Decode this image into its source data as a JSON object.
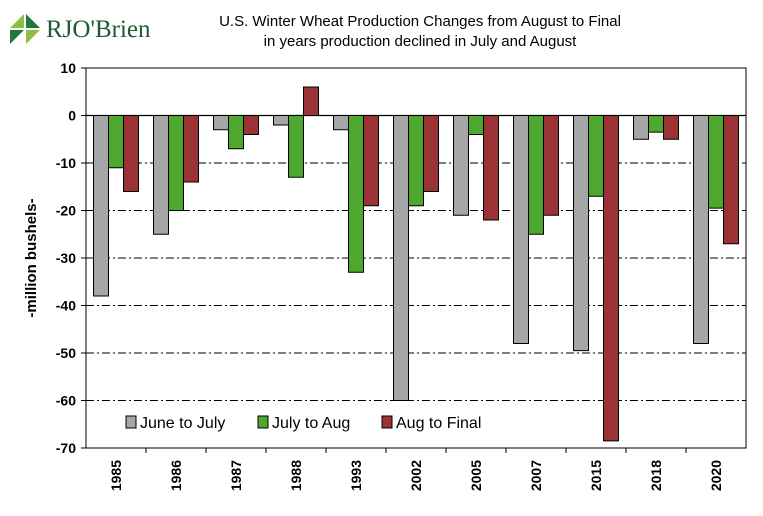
{
  "logo": {
    "text": "RJO'Brien"
  },
  "chart_data": {
    "type": "bar",
    "title": "U.S. Winter Wheat Production Changes from August to Final",
    "subtitle": "in years production declined  in July and August",
    "ylabel": "-million bushels-",
    "ylim": [
      -70,
      10
    ],
    "yticks": [
      10,
      0,
      -10,
      -20,
      -30,
      -40,
      -50,
      -60,
      -70
    ],
    "grid": true,
    "legend_placement": "bottom-left",
    "categories": [
      "1985",
      "1986",
      "1987",
      "1988",
      "1993",
      "2002",
      "2005",
      "2007",
      "2015",
      "2018",
      "2020"
    ],
    "series": [
      {
        "name": "June to July",
        "color": "#a6a6a6",
        "values": [
          -38,
          -25,
          -3,
          -2,
          -3,
          -60,
          -21,
          -48,
          -49.5,
          -5,
          -48
        ]
      },
      {
        "name": "July to Aug",
        "color": "#4ea72e",
        "values": [
          -11,
          -20,
          -7,
          -13,
          -33,
          -19,
          -4,
          -25,
          -17,
          -3.5,
          -19.5
        ]
      },
      {
        "name": "Aug to Final",
        "color": "#9b3336",
        "values": [
          -16,
          -14,
          -4,
          6,
          -19,
          -16,
          -22,
          -21,
          -68.5,
          -5,
          -27
        ]
      }
    ]
  }
}
